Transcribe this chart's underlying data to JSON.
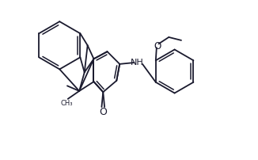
{
  "background_color": "#ffffff",
  "line_color": "#1a1a2e",
  "line_width": 1.3,
  "dbo": 0.012,
  "figsize": [
    3.26,
    2.03
  ],
  "dpi": 100,
  "xlim": [
    -0.1,
    1.05
  ],
  "ylim": [
    -0.05,
    0.72
  ]
}
